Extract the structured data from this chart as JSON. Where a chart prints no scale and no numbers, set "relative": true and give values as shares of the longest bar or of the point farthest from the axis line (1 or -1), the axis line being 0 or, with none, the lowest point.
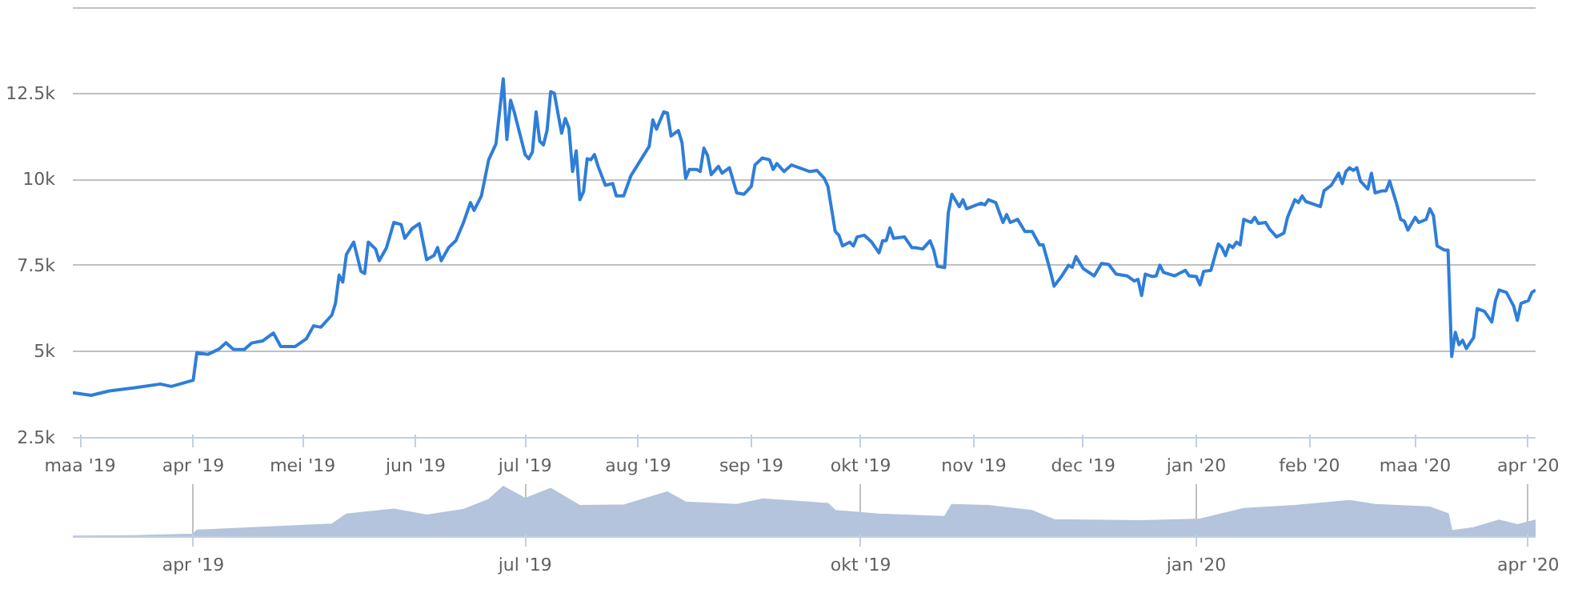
{
  "chart_data": [
    {
      "type": "line",
      "grid": "y",
      "marker": "none",
      "line_style": "solid",
      "xlim": [
        "2019-02-27",
        "2020-04-03"
      ],
      "ylim": [
        2500,
        15000
      ],
      "xticks": [
        {
          "value": "2019-03-01",
          "label": "maa '19"
        },
        {
          "value": "2019-04-01",
          "label": "apr '19"
        },
        {
          "value": "2019-05-01",
          "label": "mei '19"
        },
        {
          "value": "2019-06-01",
          "label": "jun '19"
        },
        {
          "value": "2019-07-01",
          "label": "jul '19"
        },
        {
          "value": "2019-08-01",
          "label": "aug '19"
        },
        {
          "value": "2019-09-01",
          "label": "sep '19"
        },
        {
          "value": "2019-10-01",
          "label": "okt '19"
        },
        {
          "value": "2019-11-01",
          "label": "nov '19"
        },
        {
          "value": "2019-12-01",
          "label": "dec '19"
        },
        {
          "value": "2020-01-01",
          "label": "jan '20"
        },
        {
          "value": "2020-02-01",
          "label": "feb '20"
        },
        {
          "value": "2020-03-01",
          "label": "maa '20"
        },
        {
          "value": "2020-04-01",
          "label": "apr '20"
        }
      ],
      "yticks": [
        {
          "value": 2500,
          "label": "2.5k"
        },
        {
          "value": 5000,
          "label": "5k"
        },
        {
          "value": 7500,
          "label": "7.5k"
        },
        {
          "value": 10000,
          "label": "10k"
        },
        {
          "value": 12500,
          "label": "12.5k"
        },
        {
          "value": 15000,
          "label": null
        }
      ],
      "series": [
        {
          "color": "#2f7ed8",
          "x": [
            "2019-02-27",
            "2019-03-04",
            "2019-03-09",
            "2019-03-16",
            "2019-03-23",
            "2019-03-26",
            "2019-04-01",
            "2019-04-02",
            "2019-04-05",
            "2019-04-08",
            "2019-04-10",
            "2019-04-12",
            "2019-04-15",
            "2019-04-17",
            "2019-04-20",
            "2019-04-23",
            "2019-04-25",
            "2019-04-29",
            "2019-05-02",
            "2019-05-04",
            "2019-05-06",
            "2019-05-09",
            "2019-05-10",
            "2019-05-11",
            "2019-05-12",
            "2019-05-13",
            "2019-05-15",
            "2019-05-17",
            "2019-05-18",
            "2019-05-19",
            "2019-05-21",
            "2019-05-22",
            "2019-05-24",
            "2019-05-26",
            "2019-05-28",
            "2019-05-29",
            "2019-05-31",
            "2019-06-02",
            "2019-06-04",
            "2019-06-06",
            "2019-06-07",
            "2019-06-08",
            "2019-06-10",
            "2019-06-12",
            "2019-06-14",
            "2019-06-16",
            "2019-06-17",
            "2019-06-19",
            "2019-06-21",
            "2019-06-23",
            "2019-06-25",
            "2019-06-26",
            "2019-06-27",
            "2019-06-28",
            "2019-07-01",
            "2019-07-02",
            "2019-07-03",
            "2019-07-04",
            "2019-07-05",
            "2019-07-06",
            "2019-07-07",
            "2019-07-08",
            "2019-07-09",
            "2019-07-11",
            "2019-07-12",
            "2019-07-13",
            "2019-07-14",
            "2019-07-15",
            "2019-07-16",
            "2019-07-17",
            "2019-07-18",
            "2019-07-19",
            "2019-07-20",
            "2019-07-21",
            "2019-07-23",
            "2019-07-25",
            "2019-07-26",
            "2019-07-28",
            "2019-07-30",
            "2019-08-01",
            "2019-08-04",
            "2019-08-05",
            "2019-08-06",
            "2019-08-08",
            "2019-08-09",
            "2019-08-10",
            "2019-08-12",
            "2019-08-13",
            "2019-08-14",
            "2019-08-15",
            "2019-08-17",
            "2019-08-18",
            "2019-08-19",
            "2019-08-20",
            "2019-08-21",
            "2019-08-23",
            "2019-08-24",
            "2019-08-26",
            "2019-08-28",
            "2019-08-30",
            "2019-09-01",
            "2019-09-02",
            "2019-09-04",
            "2019-09-06",
            "2019-09-07",
            "2019-09-08",
            "2019-09-10",
            "2019-09-12",
            "2019-09-17",
            "2019-09-19",
            "2019-09-21",
            "2019-09-22",
            "2019-09-24",
            "2019-09-25",
            "2019-09-26",
            "2019-09-28",
            "2019-09-29",
            "2019-09-30",
            "2019-10-02",
            "2019-10-04",
            "2019-10-06",
            "2019-10-07",
            "2019-10-08",
            "2019-10-09",
            "2019-10-10",
            "2019-10-13",
            "2019-10-15",
            "2019-10-16",
            "2019-10-18",
            "2019-10-20",
            "2019-10-21",
            "2019-10-22",
            "2019-10-24",
            "2019-10-25",
            "2019-10-26",
            "2019-10-28",
            "2019-10-29",
            "2019-10-30",
            "2019-11-03",
            "2019-11-04",
            "2019-11-05",
            "2019-11-07",
            "2019-11-09",
            "2019-11-10",
            "2019-11-11",
            "2019-11-13",
            "2019-11-15",
            "2019-11-17",
            "2019-11-19",
            "2019-11-20",
            "2019-11-22",
            "2019-11-23",
            "2019-11-25",
            "2019-11-27",
            "2019-11-28",
            "2019-11-29",
            "2019-12-01",
            "2019-12-04",
            "2019-12-06",
            "2019-12-08",
            "2019-12-10",
            "2019-12-13",
            "2019-12-15",
            "2019-12-16",
            "2019-12-17",
            "2019-12-18",
            "2019-12-20",
            "2019-12-21",
            "2019-12-22",
            "2019-12-23",
            "2019-12-26",
            "2019-12-29",
            "2019-12-30",
            "2020-01-01",
            "2020-01-02",
            "2020-01-03",
            "2020-01-05",
            "2020-01-07",
            "2020-01-08",
            "2020-01-09",
            "2020-01-10",
            "2020-01-11",
            "2020-01-12",
            "2020-01-13",
            "2020-01-14",
            "2020-01-16",
            "2020-01-17",
            "2020-01-18",
            "2020-01-20",
            "2020-01-21",
            "2020-01-23",
            "2020-01-25",
            "2020-01-26",
            "2020-01-28",
            "2020-01-29",
            "2020-01-30",
            "2020-01-31",
            "2020-02-04",
            "2020-02-05",
            "2020-02-07",
            "2020-02-09",
            "2020-02-10",
            "2020-02-11",
            "2020-02-12",
            "2020-02-13",
            "2020-02-14",
            "2020-02-15",
            "2020-02-17",
            "2020-02-18",
            "2020-02-19",
            "2020-02-21",
            "2020-02-22",
            "2020-02-23",
            "2020-02-25",
            "2020-02-26",
            "2020-02-27",
            "2020-02-28",
            "2020-03-01",
            "2020-03-02",
            "2020-03-04",
            "2020-03-05",
            "2020-03-06",
            "2020-03-07",
            "2020-03-09",
            "2020-03-10",
            "2020-03-11",
            "2020-03-12",
            "2020-03-13",
            "2020-03-14",
            "2020-03-15",
            "2020-03-16",
            "2020-03-17",
            "2020-03-18",
            "2020-03-20",
            "2020-03-22",
            "2020-03-23",
            "2020-03-24",
            "2020-03-26",
            "2020-03-28",
            "2020-03-29",
            "2020-03-30",
            "2020-04-01",
            "2020-04-02",
            "2020-04-03"
          ],
          "values": [
            3810,
            3730,
            3860,
            3950,
            4060,
            3990,
            4170,
            4970,
            4920,
            5070,
            5260,
            5070,
            5060,
            5250,
            5310,
            5540,
            5150,
            5150,
            5370,
            5750,
            5710,
            6060,
            6400,
            7220,
            7020,
            7820,
            8180,
            7330,
            7270,
            8180,
            7980,
            7640,
            8020,
            8750,
            8690,
            8290,
            8570,
            8720,
            7670,
            7790,
            8020,
            7640,
            8020,
            8220,
            8720,
            9330,
            9100,
            9520,
            10570,
            11030,
            12920,
            11160,
            12300,
            11960,
            10720,
            10600,
            10800,
            11960,
            11110,
            11000,
            11420,
            12550,
            12500,
            11340,
            11770,
            11490,
            10230,
            10830,
            9410,
            9640,
            10600,
            10570,
            10720,
            10380,
            9830,
            9880,
            9520,
            9520,
            10110,
            10450,
            10960,
            11730,
            11460,
            11960,
            11930,
            11260,
            11420,
            11070,
            10030,
            10290,
            10290,
            10230,
            10910,
            10700,
            10140,
            10380,
            10180,
            10340,
            9610,
            9570,
            9800,
            10420,
            10620,
            10570,
            10290,
            10460,
            10230,
            10420,
            10230,
            10260,
            10030,
            9800,
            8490,
            8380,
            8070,
            8180,
            8070,
            8330,
            8380,
            8180,
            7870,
            8220,
            8220,
            8590,
            8290,
            8330,
            8020,
            8020,
            7980,
            8220,
            7950,
            7480,
            7440,
            9030,
            9570,
            9210,
            9410,
            9150,
            9310,
            9260,
            9410,
            9330,
            8750,
            8980,
            8750,
            8840,
            8490,
            8490,
            8100,
            8100,
            7330,
            6900,
            7180,
            7510,
            7450,
            7760,
            7410,
            7200,
            7560,
            7530,
            7250,
            7200,
            7050,
            7100,
            6630,
            7250,
            7180,
            7200,
            7510,
            7300,
            7200,
            7360,
            7200,
            7180,
            6940,
            7330,
            7360,
            8130,
            8020,
            7790,
            8100,
            8020,
            8180,
            8100,
            8840,
            8750,
            8900,
            8720,
            8750,
            8570,
            8330,
            8440,
            8900,
            9410,
            9330,
            9520,
            9360,
            9210,
            9670,
            9830,
            10180,
            9880,
            10230,
            10340,
            10260,
            10340,
            9950,
            9720,
            10180,
            9610,
            9670,
            9670,
            9950,
            9260,
            8840,
            8790,
            8530,
            8900,
            8750,
            8840,
            9150,
            8950,
            8070,
            7950,
            7950,
            4860,
            5560,
            5200,
            5330,
            5090,
            5250,
            5400,
            6250,
            6170,
            5860,
            6480,
            6790,
            6720,
            6320,
            5910,
            6400,
            6480,
            6720,
            6790
          ]
        }
      ]
    },
    {
      "type": "area",
      "relative": true,
      "grid": "x",
      "xlim": [
        "2019-02-27",
        "2020-04-03"
      ],
      "xticks": [
        {
          "value": "2019-04-01",
          "label": "apr '19"
        },
        {
          "value": "2019-07-01",
          "label": "jul '19"
        },
        {
          "value": "2019-10-01",
          "label": "okt '19"
        },
        {
          "value": "2020-01-01",
          "label": "jan '20"
        },
        {
          "value": "2020-04-01",
          "label": "apr '20"
        }
      ],
      "series": [
        {
          "color": "#b3c4dc",
          "x": [
            "2019-02-27",
            "2019-03-16",
            "2019-04-01",
            "2019-04-02",
            "2019-04-23",
            "2019-05-09",
            "2019-05-13",
            "2019-05-26",
            "2019-06-04",
            "2019-06-14",
            "2019-06-21",
            "2019-06-25",
            "2019-07-01",
            "2019-07-08",
            "2019-07-16",
            "2019-07-28",
            "2019-08-09",
            "2019-08-14",
            "2019-08-28",
            "2019-09-04",
            "2019-09-22",
            "2019-09-24",
            "2019-10-06",
            "2019-10-24",
            "2019-10-26",
            "2019-11-05",
            "2019-11-17",
            "2019-11-23",
            "2019-12-17",
            "2020-01-02",
            "2020-01-14",
            "2020-01-28",
            "2020-02-12",
            "2020-02-19",
            "2020-03-05",
            "2020-03-10",
            "2020-03-11",
            "2020-03-17",
            "2020-03-24",
            "2020-03-29",
            "2020-04-03"
          ],
          "values": [
            0.01,
            0.02,
            0.05,
            0.13,
            0.2,
            0.25,
            0.45,
            0.55,
            0.43,
            0.54,
            0.74,
            1,
            0.76,
            0.96,
            0.62,
            0.63,
            0.89,
            0.69,
            0.64,
            0.75,
            0.66,
            0.52,
            0.45,
            0.4,
            0.64,
            0.62,
            0.52,
            0.34,
            0.32,
            0.35,
            0.56,
            0.62,
            0.72,
            0.64,
            0.59,
            0.46,
            0.12,
            0.18,
            0.33,
            0.24,
            0.33
          ]
        }
      ]
    }
  ]
}
